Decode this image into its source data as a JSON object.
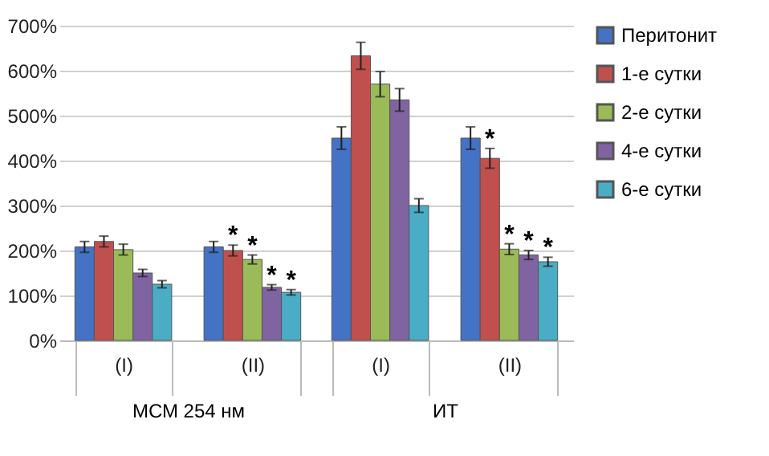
{
  "chart_data": [
    {
      "type": "bar",
      "categories": [
        "(I)",
        "(II)"
      ],
      "xlabel": "МСМ 254 нм",
      "ylim": [
        0,
        700
      ],
      "yticks": [
        {
          "value": 0,
          "label": "0%"
        },
        {
          "value": 100,
          "label": "100%"
        },
        {
          "value": 200,
          "label": "200%"
        },
        {
          "value": 300,
          "label": "300%"
        },
        {
          "value": 400,
          "label": "400%"
        },
        {
          "value": 500,
          "label": "500%"
        },
        {
          "value": 600,
          "label": "600%"
        },
        {
          "value": 700,
          "label": "700%"
        }
      ],
      "grid": "y",
      "legend": "right",
      "series": [
        {
          "name": "Перитонит",
          "color": "#4472c4",
          "values": [
            208,
            208
          ],
          "errors": [
            12,
            12
          ],
          "value_labels": [
            null,
            null
          ]
        },
        {
          "name": "1-е сутки",
          "color": "#c0504d",
          "values": [
            220,
            200
          ],
          "errors": [
            12,
            12
          ],
          "value_labels": [
            null,
            "*"
          ]
        },
        {
          "name": "2-е сутки",
          "color": "#9bbb59",
          "values": [
            202,
            180
          ],
          "errors": [
            12,
            10
          ],
          "value_labels": [
            null,
            "*"
          ]
        },
        {
          "name": "4-е сутки",
          "color": "#8064a2",
          "values": [
            150,
            118
          ],
          "errors": [
            8,
            6
          ],
          "value_labels": [
            null,
            "*"
          ]
        },
        {
          "name": "6-е сутки",
          "color": "#4bacc6",
          "values": [
            125,
            107
          ],
          "errors": [
            8,
            6
          ],
          "value_labels": [
            null,
            "*"
          ]
        }
      ]
    },
    {
      "type": "bar",
      "categories": [
        "(I)",
        "(II)"
      ],
      "xlabel": "ИТ",
      "ylim": [
        0,
        700
      ],
      "yticks": [
        0,
        100,
        200,
        300,
        400,
        500,
        600,
        700
      ],
      "grid": "y",
      "legend": "right",
      "tick_labels": "x",
      "series": [
        {
          "name": "Перитонит",
          "color": "#4472c4",
          "values": [
            450,
            450
          ],
          "errors": [
            25,
            25
          ],
          "value_labels": [
            null,
            null
          ]
        },
        {
          "name": "1-е сутки",
          "color": "#c0504d",
          "values": [
            633,
            405
          ],
          "errors": [
            30,
            22
          ],
          "value_labels": [
            null,
            "*"
          ]
        },
        {
          "name": "2-е сутки",
          "color": "#9bbb59",
          "values": [
            570,
            203
          ],
          "errors": [
            28,
            12
          ],
          "value_labels": [
            null,
            "*"
          ]
        },
        {
          "name": "4-е сутки",
          "color": "#8064a2",
          "values": [
            535,
            190
          ],
          "errors": [
            25,
            10
          ],
          "value_labels": [
            null,
            "*"
          ]
        },
        {
          "name": "6-е сутки",
          "color": "#4bacc6",
          "values": [
            300,
            175
          ],
          "errors": [
            15,
            10
          ],
          "value_labels": [
            null,
            "*"
          ]
        }
      ]
    }
  ]
}
